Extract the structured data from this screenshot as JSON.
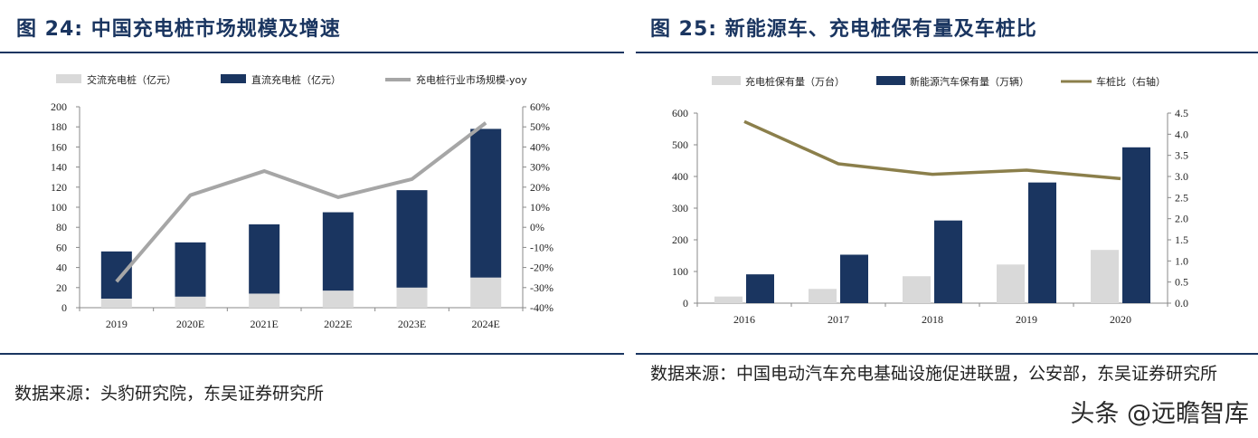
{
  "left": {
    "title": "图 24:  中国充电桩市场规模及增速",
    "source": "数据来源：头豹研究院，东吴证券研究所"
  },
  "right": {
    "title": "图 25:  新能源车、充电桩保有量及车桩比",
    "source": "数据来源：中国电动汽车充电基础设施促进联盟，公安部，东吴证券研究所"
  },
  "watermark": "头条 @远瞻智库",
  "colors": {
    "navy": "#1a3560",
    "light_gray": "#d9d9d9",
    "line_gray": "#a6a6a6",
    "olive": "#8b7f4b"
  },
  "chart_data": [
    {
      "type": "bar",
      "stacked": true,
      "categories": [
        "2019",
        "2020E",
        "2021E",
        "2022E",
        "2023E",
        "2024E"
      ],
      "series": [
        {
          "name": "交流充电桩（亿元）",
          "kind": "bar",
          "values": [
            9,
            11,
            14,
            17,
            20,
            30
          ]
        },
        {
          "name": "直流充电桩（亿元）",
          "kind": "bar",
          "values": [
            47,
            54,
            69,
            78,
            97,
            148
          ]
        },
        {
          "name": "充电桩行业市场规模-yoy",
          "kind": "line",
          "axis": "right",
          "values": [
            -27,
            16,
            28,
            15,
            24,
            52
          ]
        }
      ],
      "ylim": [
        0,
        200
      ],
      "y_ticks": [
        "0",
        "20",
        "40",
        "60",
        "80",
        "100",
        "120",
        "140",
        "160",
        "180",
        "200"
      ],
      "y2lim": [
        -40,
        60
      ],
      "y2_ticks": [
        "-40%",
        "-30%",
        "-20%",
        "-10%",
        "0%",
        "10%",
        "20%",
        "30%",
        "40%",
        "50%",
        "60%"
      ],
      "legend_position": "top",
      "grid": false
    },
    {
      "type": "bar",
      "categories": [
        "2016",
        "2017",
        "2018",
        "2019",
        "2020"
      ],
      "series": [
        {
          "name": "充电桩保有量（万台）",
          "kind": "bar",
          "values": [
            21,
            45,
            85,
            122,
            168
          ]
        },
        {
          "name": "新能源汽车保有量（万辆）",
          "kind": "bar",
          "values": [
            91,
            153,
            261,
            381,
            492
          ]
        },
        {
          "name": "车桩比（右轴）",
          "kind": "line",
          "axis": "right",
          "values": [
            4.3,
            3.3,
            3.05,
            3.15,
            2.95
          ]
        }
      ],
      "ylim": [
        0,
        600
      ],
      "y_ticks": [
        "0",
        "100",
        "200",
        "300",
        "400",
        "500",
        "600"
      ],
      "y2lim": [
        0,
        4.5
      ],
      "y2_ticks": [
        "0.0",
        "0.5",
        "1.0",
        "1.5",
        "2.0",
        "2.5",
        "3.0",
        "3.5",
        "4.0",
        "4.5"
      ],
      "legend_position": "top",
      "grid": false
    }
  ]
}
